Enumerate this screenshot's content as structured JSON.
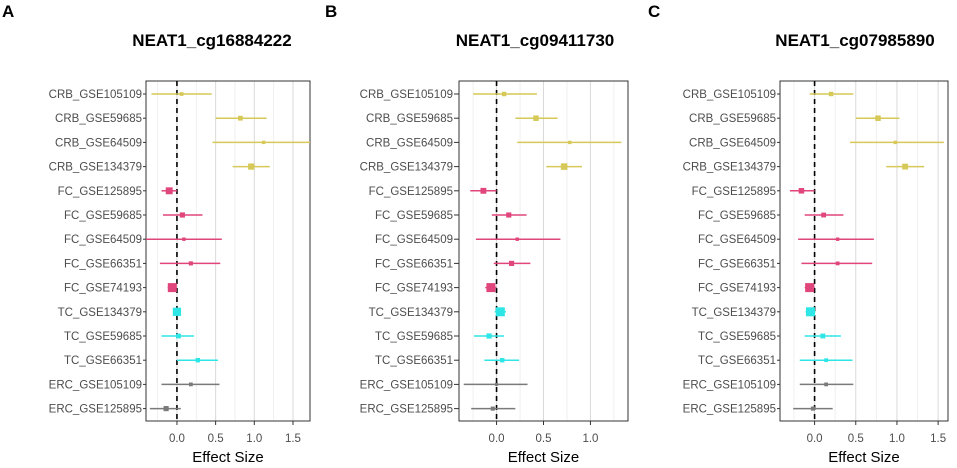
{
  "chart_data": [
    {
      "type": "forest",
      "panel_letter": "A",
      "title": "NEAT1_cg16884222",
      "xlabel": "Effect Size",
      "xlim": [
        -0.4,
        1.72
      ],
      "xticks": [
        0.0,
        0.5,
        1.0,
        1.5
      ],
      "xtick_labels": [
        "0.0",
        "0.5",
        "1.0",
        "1.5"
      ],
      "reference_line": 0,
      "rows": [
        {
          "label": "CRB_GSE105109",
          "group": "CRB",
          "estimate": 0.06,
          "lower": -0.33,
          "upper": 0.45,
          "weight": 0.25
        },
        {
          "label": "CRB_GSE59685",
          "group": "CRB",
          "estimate": 0.82,
          "lower": 0.5,
          "upper": 1.16,
          "weight": 0.4
        },
        {
          "label": "CRB_GSE64509",
          "group": "CRB",
          "estimate": 1.12,
          "lower": 0.46,
          "upper": 1.78,
          "weight": 0.2
        },
        {
          "label": "CRB_GSE134379",
          "group": "CRB",
          "estimate": 0.96,
          "lower": 0.72,
          "upper": 1.2,
          "weight": 0.6
        },
        {
          "label": "FC_GSE125895",
          "group": "FC",
          "estimate": -0.1,
          "lower": -0.2,
          "upper": 0.0,
          "weight": 0.7
        },
        {
          "label": "FC_GSE59685",
          "group": "FC",
          "estimate": 0.07,
          "lower": -0.18,
          "upper": 0.33,
          "weight": 0.45
        },
        {
          "label": "FC_GSE64509",
          "group": "FC",
          "estimate": 0.09,
          "lower": -0.4,
          "upper": 0.58,
          "weight": 0.2
        },
        {
          "label": "FC_GSE66351",
          "group": "FC",
          "estimate": 0.18,
          "lower": -0.22,
          "upper": 0.56,
          "weight": 0.3
        },
        {
          "label": "FC_GSE74193",
          "group": "FC",
          "estimate": -0.06,
          "lower": -0.12,
          "upper": -0.01,
          "weight": 1.0
        },
        {
          "label": "TC_GSE134379",
          "group": "TC",
          "estimate": 0.0,
          "lower": -0.05,
          "upper": 0.05,
          "weight": 0.9
        },
        {
          "label": "TC_GSE59685",
          "group": "TC",
          "estimate": 0.02,
          "lower": -0.2,
          "upper": 0.22,
          "weight": 0.4
        },
        {
          "label": "TC_GSE66351",
          "group": "TC",
          "estimate": 0.27,
          "lower": 0.0,
          "upper": 0.53,
          "weight": 0.35
        },
        {
          "label": "ERC_GSE105109",
          "group": "ERC",
          "estimate": 0.18,
          "lower": -0.2,
          "upper": 0.55,
          "weight": 0.25
        },
        {
          "label": "ERC_GSE125895",
          "group": "ERC",
          "estimate": -0.14,
          "lower": -0.35,
          "upper": 0.05,
          "weight": 0.45
        }
      ]
    },
    {
      "type": "forest",
      "panel_letter": "B",
      "title": "NEAT1_cg09411730",
      "xlabel": "Effect Size",
      "xlim": [
        -0.4,
        1.4
      ],
      "xticks": [
        0.0,
        0.5,
        1.0
      ],
      "xtick_labels": [
        "0.0",
        "0.5",
        "1.0"
      ],
      "reference_line": 0,
      "rows": [
        {
          "label": "CRB_GSE105109",
          "group": "CRB",
          "estimate": 0.08,
          "lower": -0.25,
          "upper": 0.43,
          "weight": 0.35
        },
        {
          "label": "CRB_GSE59685",
          "group": "CRB",
          "estimate": 0.42,
          "lower": 0.2,
          "upper": 0.65,
          "weight": 0.5
        },
        {
          "label": "CRB_GSE64509",
          "group": "CRB",
          "estimate": 0.78,
          "lower": 0.22,
          "upper": 1.33,
          "weight": 0.2
        },
        {
          "label": "CRB_GSE134379",
          "group": "CRB",
          "estimate": 0.72,
          "lower": 0.53,
          "upper": 0.91,
          "weight": 0.65
        },
        {
          "label": "FC_GSE125895",
          "group": "FC",
          "estimate": -0.14,
          "lower": -0.28,
          "upper": 0.0,
          "weight": 0.55
        },
        {
          "label": "FC_GSE59685",
          "group": "FC",
          "estimate": 0.13,
          "lower": -0.05,
          "upper": 0.32,
          "weight": 0.45
        },
        {
          "label": "FC_GSE64509",
          "group": "FC",
          "estimate": 0.22,
          "lower": -0.22,
          "upper": 0.68,
          "weight": 0.2
        },
        {
          "label": "FC_GSE66351",
          "group": "FC",
          "estimate": 0.16,
          "lower": -0.03,
          "upper": 0.36,
          "weight": 0.45
        },
        {
          "label": "FC_GSE74193",
          "group": "FC",
          "estimate": -0.06,
          "lower": -0.12,
          "upper": 0.0,
          "weight": 1.0
        },
        {
          "label": "TC_GSE134379",
          "group": "TC",
          "estimate": 0.04,
          "lower": -0.02,
          "upper": 0.1,
          "weight": 1.0
        },
        {
          "label": "TC_GSE59685",
          "group": "TC",
          "estimate": -0.08,
          "lower": -0.24,
          "upper": 0.08,
          "weight": 0.45
        },
        {
          "label": "TC_GSE66351",
          "group": "TC",
          "estimate": 0.06,
          "lower": -0.13,
          "upper": 0.24,
          "weight": 0.35
        },
        {
          "label": "ERC_GSE105109",
          "group": "ERC",
          "estimate": 0.0,
          "lower": -0.35,
          "upper": 0.33,
          "weight": 0.15
        },
        {
          "label": "ERC_GSE125895",
          "group": "ERC",
          "estimate": -0.04,
          "lower": -0.27,
          "upper": 0.2,
          "weight": 0.3
        }
      ]
    },
    {
      "type": "forest",
      "panel_letter": "C",
      "title": "NEAT1_cg07985890",
      "xlabel": "Effect Size",
      "xlim": [
        -0.42,
        1.62
      ],
      "xticks": [
        0.0,
        0.5,
        1.0,
        1.5
      ],
      "xtick_labels": [
        "0.0",
        "0.5",
        "1.0",
        "1.5"
      ],
      "reference_line": 0,
      "rows": [
        {
          "label": "CRB_GSE105109",
          "group": "CRB",
          "estimate": 0.2,
          "lower": -0.06,
          "upper": 0.47,
          "weight": 0.35
        },
        {
          "label": "CRB_GSE59685",
          "group": "CRB",
          "estimate": 0.77,
          "lower": 0.5,
          "upper": 1.03,
          "weight": 0.5
        },
        {
          "label": "CRB_GSE64509",
          "group": "CRB",
          "estimate": 0.98,
          "lower": 0.43,
          "upper": 1.57,
          "weight": 0.2
        },
        {
          "label": "CRB_GSE134379",
          "group": "CRB",
          "estimate": 1.1,
          "lower": 0.87,
          "upper": 1.33,
          "weight": 0.55
        },
        {
          "label": "FC_GSE125895",
          "group": "FC",
          "estimate": -0.16,
          "lower": -0.3,
          "upper": 0.0,
          "weight": 0.5
        },
        {
          "label": "FC_GSE59685",
          "group": "FC",
          "estimate": 0.11,
          "lower": -0.12,
          "upper": 0.35,
          "weight": 0.4
        },
        {
          "label": "FC_GSE64509",
          "group": "FC",
          "estimate": 0.28,
          "lower": -0.2,
          "upper": 0.72,
          "weight": 0.2
        },
        {
          "label": "FC_GSE66351",
          "group": "FC",
          "estimate": 0.28,
          "lower": -0.16,
          "upper": 0.7,
          "weight": 0.25
        },
        {
          "label": "FC_GSE74193",
          "group": "FC",
          "estimate": -0.06,
          "lower": -0.12,
          "upper": 0.0,
          "weight": 1.0
        },
        {
          "label": "TC_GSE134379",
          "group": "TC",
          "estimate": -0.05,
          "lower": -0.11,
          "upper": 0.01,
          "weight": 1.0
        },
        {
          "label": "TC_GSE59685",
          "group": "TC",
          "estimate": 0.1,
          "lower": -0.12,
          "upper": 0.32,
          "weight": 0.4
        },
        {
          "label": "TC_GSE66351",
          "group": "TC",
          "estimate": 0.14,
          "lower": -0.18,
          "upper": 0.46,
          "weight": 0.25
        },
        {
          "label": "ERC_GSE105109",
          "group": "ERC",
          "estimate": 0.14,
          "lower": -0.18,
          "upper": 0.47,
          "weight": 0.25
        },
        {
          "label": "ERC_GSE125895",
          "group": "ERC",
          "estimate": -0.02,
          "lower": -0.26,
          "upper": 0.22,
          "weight": 0.3
        }
      ]
    }
  ],
  "group_colors": {
    "CRB": "#d6c957",
    "FC": "#e0457b",
    "TC": "#2ee6e6",
    "ERC": "#7a7a7a"
  }
}
